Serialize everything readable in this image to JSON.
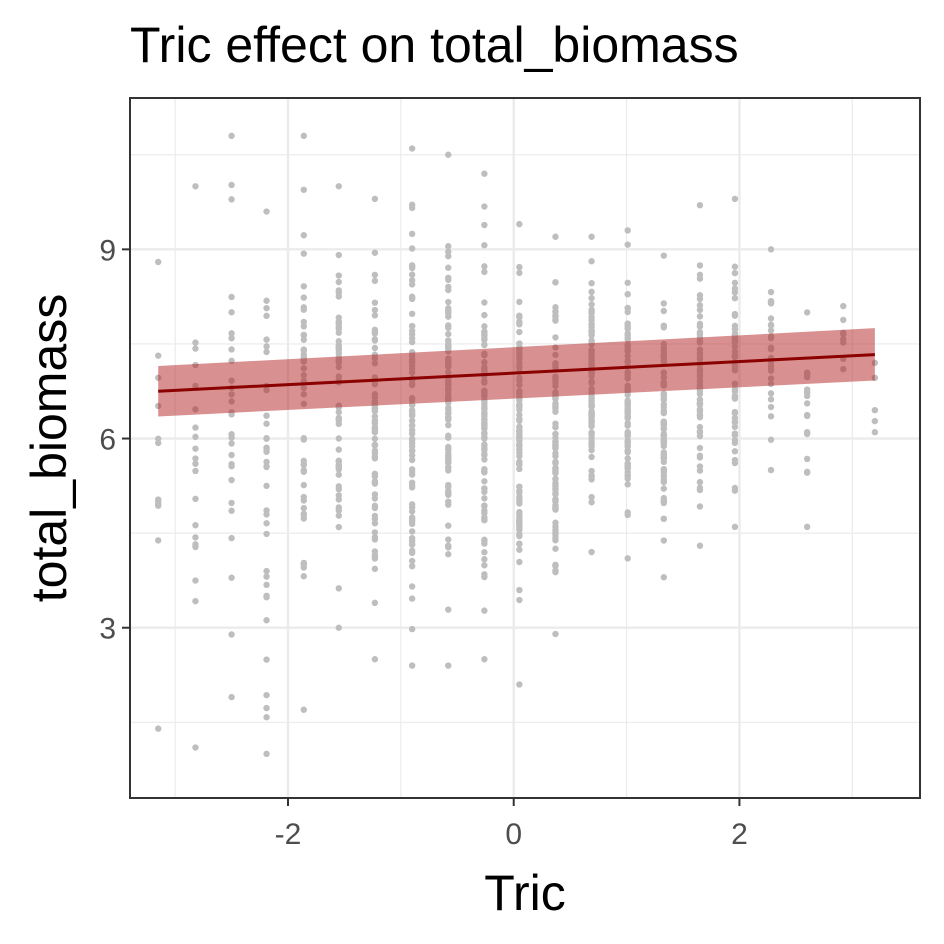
{
  "chart_data": {
    "type": "scatter",
    "title": "Tric effect on total_biomass",
    "xlabel": "Tric",
    "ylabel": "total_biomass",
    "xlim": [
      -3.4,
      3.6
    ],
    "ylim": [
      0.3,
      11.4
    ],
    "x_ticks": [
      -2,
      0,
      2
    ],
    "y_ticks": [
      3,
      6,
      9
    ],
    "grid": true,
    "colors": {
      "points": "#bebebe",
      "fit_line": "#8b0000",
      "ribbon": "#b22222",
      "panel_border": "#333333",
      "grid": "#ebebeb"
    },
    "x_levels": [
      -3.15,
      -2.82,
      -2.5,
      -2.19,
      -1.86,
      -1.55,
      -1.23,
      -0.9,
      -0.58,
      -0.26,
      0.05,
      0.37,
      0.69,
      1.01,
      1.33,
      1.65,
      1.96,
      2.28,
      2.6,
      2.92,
      3.2
    ],
    "level_ranges": [
      [
        1.4,
        8.8
      ],
      [
        1.1,
        10.0
      ],
      [
        1.9,
        10.8
      ],
      [
        1.0,
        9.6
      ],
      [
        1.7,
        10.8
      ],
      [
        3.0,
        10.0
      ],
      [
        2.5,
        9.8
      ],
      [
        2.4,
        10.6
      ],
      [
        2.4,
        10.5
      ],
      [
        2.5,
        10.2
      ],
      [
        2.1,
        9.4
      ],
      [
        2.9,
        9.2
      ],
      [
        4.2,
        9.2
      ],
      [
        4.1,
        9.3
      ],
      [
        3.8,
        8.9
      ],
      [
        4.3,
        9.7
      ],
      [
        4.6,
        9.8
      ],
      [
        5.5,
        9.0
      ],
      [
        4.6,
        8.0
      ],
      [
        7.1,
        8.1
      ],
      [
        6.1,
        7.2
      ]
    ],
    "level_counts": [
      10,
      18,
      26,
      34,
      46,
      58,
      70,
      82,
      90,
      96,
      100,
      96,
      90,
      84,
      74,
      62,
      50,
      26,
      16,
      6,
      3
    ],
    "series": [
      {
        "name": "observations",
        "kind": "points"
      },
      {
        "name": "fit",
        "kind": "line",
        "x": [
          -3.15,
          3.2
        ],
        "y": [
          6.75,
          7.33
        ]
      },
      {
        "name": "ci",
        "kind": "ribbon",
        "x": [
          -3.15,
          3.2
        ],
        "ymin": [
          6.35,
          6.92
        ],
        "ymax": [
          7.15,
          7.75
        ]
      }
    ]
  }
}
